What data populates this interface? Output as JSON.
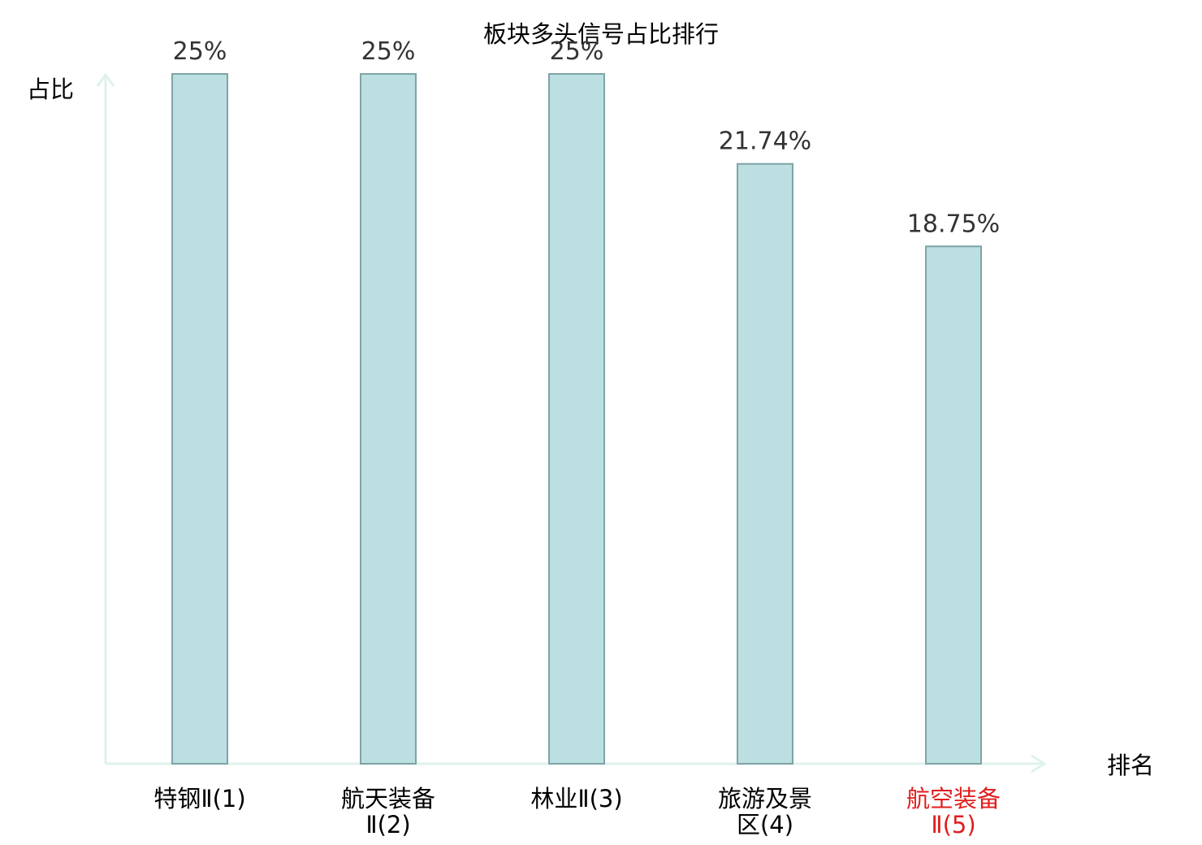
{
  "chart_data": {
    "type": "bar",
    "title": "板块多头信号占比排行",
    "xlabel": "排名",
    "ylabel": "占比",
    "categories": [
      [
        "特钢Ⅱ(1)"
      ],
      [
        "航天装备",
        "Ⅱ(2)"
      ],
      [
        "林业Ⅱ(3)"
      ],
      [
        "旅游及景",
        "区(4)"
      ],
      [
        "航空装备",
        "Ⅱ(5)"
      ]
    ],
    "values": [
      25,
      25,
      25,
      21.74,
      18.75
    ],
    "value_labels": [
      "25%",
      "25%",
      "25%",
      "21.74%",
      "18.75%"
    ],
    "ylim": [
      0,
      25
    ],
    "grid": false,
    "highlight_index": 4
  },
  "colors": {
    "bar_fill": "#bce0e2",
    "bar_stroke": "#7fa3a6",
    "axis": "#dff1ee",
    "label": "#000000",
    "value_label": "#333333",
    "highlight": "#e01e1e"
  }
}
